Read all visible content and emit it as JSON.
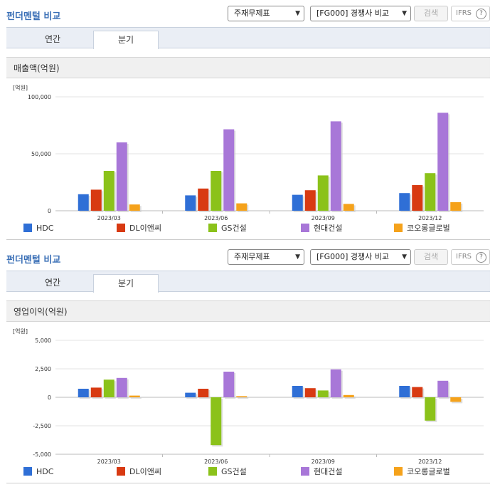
{
  "panels": [
    {
      "title": "펀더멘털 비교",
      "select1": "주재무제표",
      "select2": "[FG000] 경쟁사 비교",
      "search_label": "검색",
      "ifrs_label": "IFRS",
      "ifrs_help": "?",
      "tabs": [
        "연간",
        "분기"
      ],
      "active_tab": "분기",
      "section_title": "매출액(억원)"
    },
    {
      "title": "펀더멘털 비교",
      "select1": "주재무제표",
      "select2": "[FG000] 경쟁사 비교",
      "search_label": "검색",
      "ifrs_label": "IFRS",
      "ifrs_help": "?",
      "tabs": [
        "연간",
        "분기"
      ],
      "active_tab": "분기",
      "section_title": "영업이익(억원)"
    }
  ],
  "chart_data": [
    {
      "type": "bar",
      "title": "매출액(억원)",
      "unit": "[억원]",
      "categories": [
        "2023/03",
        "2023/06",
        "2023/09",
        "2023/12"
      ],
      "ylim": [
        0,
        100000
      ],
      "yticks": [
        0,
        50000,
        100000
      ],
      "ytick_labels": [
        "0",
        "50,000",
        "100,000"
      ],
      "series": [
        {
          "name": "HDC",
          "color": "#2f6fd6",
          "values": [
            14500,
            13500,
            14000,
            15500
          ]
        },
        {
          "name": "DL이앤씨",
          "color": "#d83a12",
          "values": [
            18500,
            19500,
            18000,
            22500
          ]
        },
        {
          "name": "GS건설",
          "color": "#8bc21a",
          "values": [
            35000,
            35000,
            31000,
            33000
          ]
        },
        {
          "name": "현대건설",
          "color": "#a877d8",
          "values": [
            60000,
            71500,
            78500,
            86000
          ]
        },
        {
          "name": "코오롱글로벌",
          "color": "#f5a21b",
          "values": [
            5500,
            6500,
            6000,
            7500
          ]
        }
      ]
    },
    {
      "type": "bar",
      "title": "영업이익(억원)",
      "unit": "[억원]",
      "categories": [
        "2023/03",
        "2023/06",
        "2023/09",
        "2023/12"
      ],
      "ylim": [
        -5000,
        5000
      ],
      "yticks": [
        -5000,
        -2500,
        0,
        2500,
        5000
      ],
      "ytick_labels": [
        "-5,000",
        "-2,500",
        "0",
        "2,500",
        "5,000"
      ],
      "series": [
        {
          "name": "HDC",
          "color": "#2f6fd6",
          "values": [
            750,
            400,
            1000,
            1000
          ]
        },
        {
          "name": "DL이앤씨",
          "color": "#d83a12",
          "values": [
            850,
            750,
            800,
            900
          ]
        },
        {
          "name": "GS건설",
          "color": "#8bc21a",
          "values": [
            1550,
            -4200,
            600,
            -2050
          ]
        },
        {
          "name": "현대건설",
          "color": "#a877d8",
          "values": [
            1700,
            2250,
            2450,
            1450
          ]
        },
        {
          "name": "코오롱글로벌",
          "color": "#f5a21b",
          "values": [
            150,
            100,
            200,
            -400
          ]
        }
      ]
    }
  ]
}
